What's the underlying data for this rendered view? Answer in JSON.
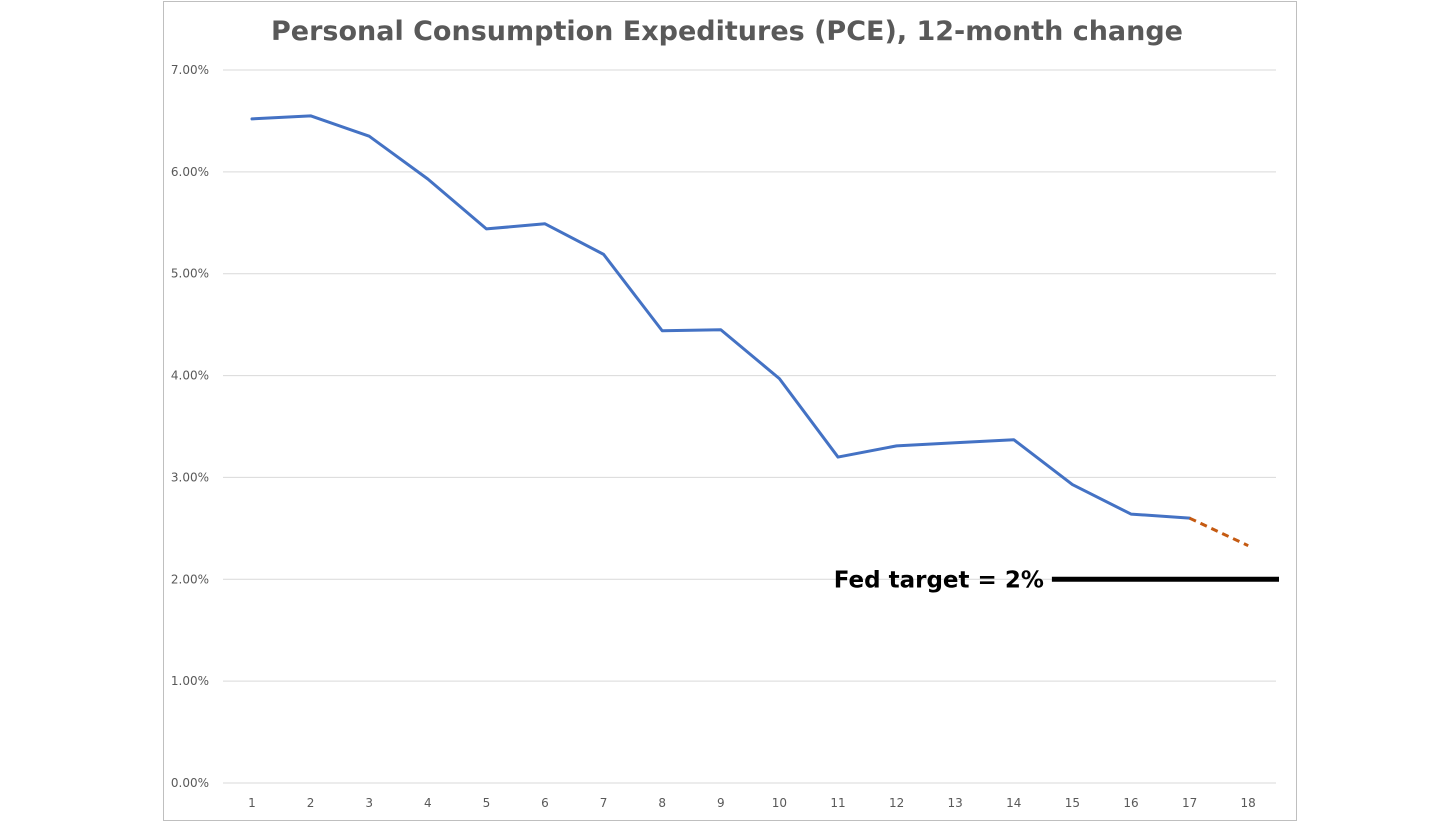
{
  "chart_data": {
    "type": "line",
    "title": "Personal Consumption Expeditures (PCE), 12-month change",
    "xlabel": "",
    "ylabel": "",
    "categories": [
      "1",
      "2",
      "3",
      "4",
      "5",
      "6",
      "7",
      "8",
      "9",
      "10",
      "11",
      "12",
      "13",
      "14",
      "15",
      "16",
      "17",
      "18"
    ],
    "y_tick_labels": [
      "0.00%",
      "1.00%",
      "2.00%",
      "3.00%",
      "4.00%",
      "5.00%",
      "6.00%",
      "7.00%"
    ],
    "y_ticks": [
      0,
      1,
      2,
      3,
      4,
      5,
      6,
      7
    ],
    "ylim": [
      0,
      7
    ],
    "grid": true,
    "legend": "none",
    "series": [
      {
        "name": "",
        "color": "#4472c4",
        "style": "solid",
        "x": [
          1,
          2,
          3,
          4,
          5,
          6,
          7,
          8,
          9,
          10,
          11,
          12,
          13,
          14,
          15,
          16,
          17
        ],
        "values": [
          6.52,
          6.55,
          6.35,
          5.93,
          5.44,
          5.49,
          5.19,
          4.44,
          4.45,
          3.97,
          3.2,
          3.31,
          3.34,
          3.37,
          2.93,
          2.64,
          2.6
        ]
      },
      {
        "name": "",
        "color": "#c55a11",
        "style": "dashed",
        "x": [
          17,
          18
        ],
        "values": [
          2.6,
          2.33
        ]
      }
    ],
    "annotations": [
      {
        "text": "Fed target = 2%",
        "value": 2.0,
        "color": "#000000",
        "x_start": 14.65,
        "x_end": 18.55
      }
    ]
  }
}
